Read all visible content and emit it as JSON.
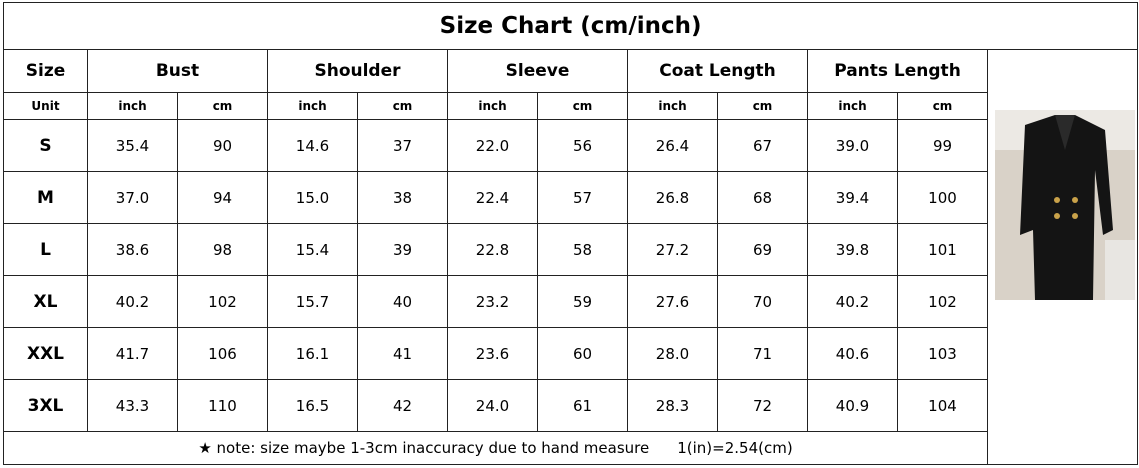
{
  "title": "Size Chart (cm/inch)",
  "table": {
    "header": [
      "Size",
      "Bust",
      "Shoulder",
      "Sleeve",
      "Coat Length",
      "Pants Length"
    ],
    "units": [
      "Unit",
      "inch",
      "cm",
      "inch",
      "cm",
      "inch",
      "cm",
      "inch",
      "cm",
      "inch",
      "cm"
    ],
    "rows": [
      [
        "S",
        "35.4",
        "90",
        "14.6",
        "37",
        "22.0",
        "56",
        "26.4",
        "67",
        "39.0",
        "99"
      ],
      [
        "M",
        "37.0",
        "94",
        "15.0",
        "38",
        "22.4",
        "57",
        "26.8",
        "68",
        "39.4",
        "100"
      ],
      [
        "L",
        "38.6",
        "98",
        "15.4",
        "39",
        "22.8",
        "58",
        "27.2",
        "69",
        "39.8",
        "101"
      ],
      [
        "XL",
        "40.2",
        "102",
        "15.7",
        "40",
        "23.2",
        "59",
        "27.6",
        "70",
        "40.2",
        "102"
      ],
      [
        "XXL",
        "41.7",
        "106",
        "16.1",
        "41",
        "23.6",
        "60",
        "28.0",
        "71",
        "40.6",
        "103"
      ],
      [
        "3XL",
        "43.3",
        "110",
        "16.5",
        "42",
        "24.0",
        "61",
        "28.3",
        "72",
        "40.9",
        "104"
      ]
    ],
    "note": "★ note: size maybe 1-3cm inaccuracy due to hand measure",
    "conversion": "1(in)=2.54(cm)"
  }
}
